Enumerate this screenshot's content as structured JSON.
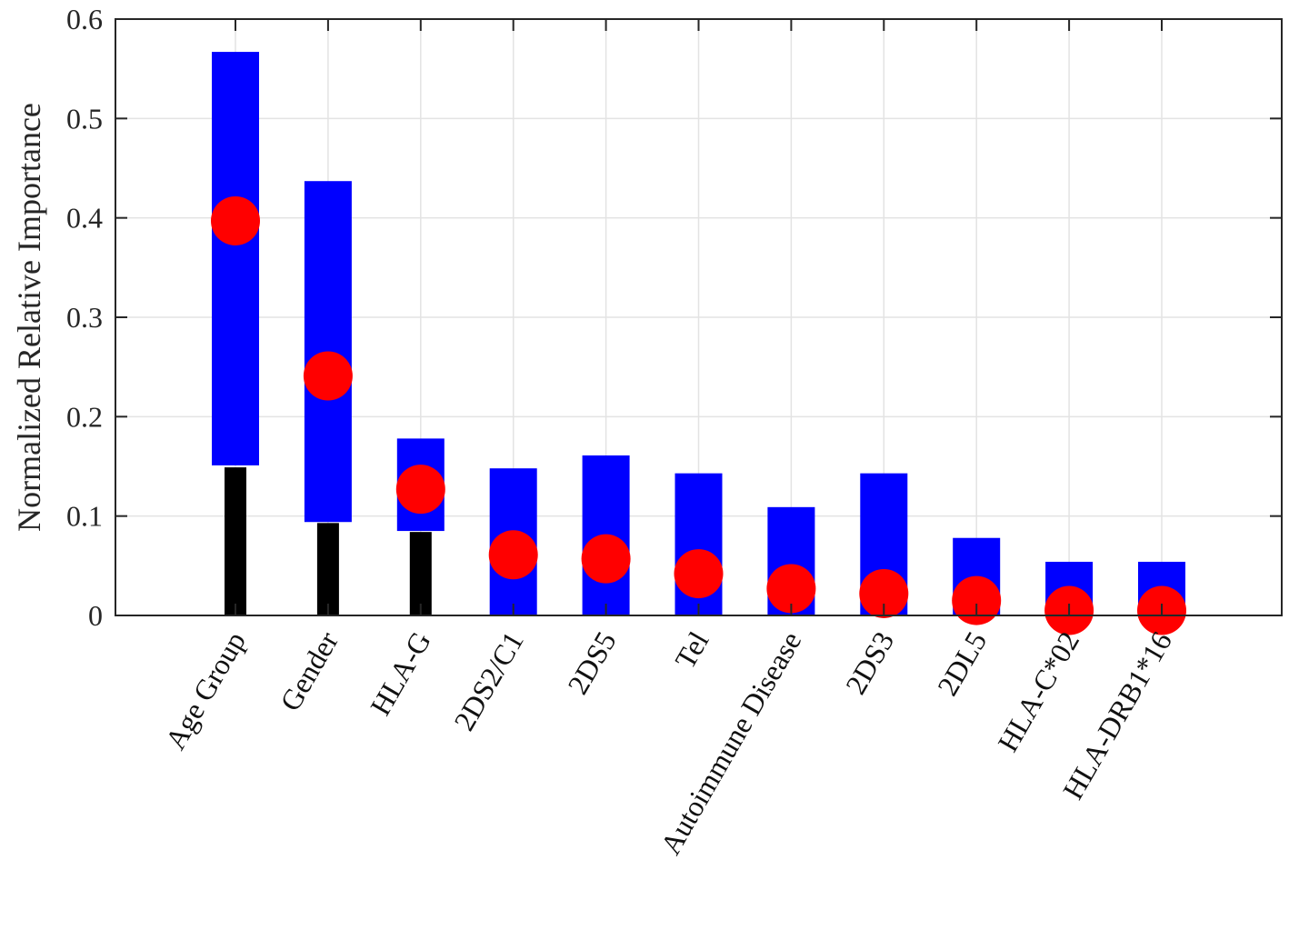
{
  "chart_data": {
    "type": "bar",
    "subtype": "floating-range-bar-with-median-marker",
    "title": "",
    "xlabel": "",
    "ylabel": "Normalized Relative Importance",
    "ylim": [
      0,
      0.6
    ],
    "yticks": [
      0,
      0.1,
      0.2,
      0.3,
      0.4,
      0.5,
      0.6
    ],
    "ytick_labels": [
      "0",
      "0.1",
      "0.2",
      "0.3",
      "0.4",
      "0.5",
      "0.6"
    ],
    "grid": true,
    "legend": null,
    "categories": [
      "Age Group",
      "Gender",
      "HLA-G",
      "2DS2/C1",
      "2DS5",
      "Tel",
      "Autoimmune Disease",
      "2DS3",
      "2DL5",
      "HLA-C*02",
      "HLA-DRB1*16"
    ],
    "series": [
      {
        "name": "range_low",
        "role": "blue bar bottom",
        "values": [
          0.151,
          0.094,
          0.085,
          0,
          0,
          0,
          0,
          0,
          0,
          0,
          0
        ]
      },
      {
        "name": "range_high",
        "role": "blue bar top",
        "values": [
          0.567,
          0.437,
          0.178,
          0.148,
          0.161,
          0.143,
          0.109,
          0.143,
          0.078,
          0.054,
          0.054
        ]
      },
      {
        "name": "lower_bar",
        "role": "black bar height",
        "values": [
          0.149,
          0.093,
          0.084,
          0,
          0,
          0,
          0,
          0,
          0,
          0,
          0
        ]
      },
      {
        "name": "marker",
        "role": "red dot value",
        "values": [
          0.397,
          0.241,
          0.127,
          0.061,
          0.057,
          0.042,
          0.027,
          0.022,
          0.015,
          0.005,
          0.005
        ]
      }
    ],
    "colors": {
      "range_bar": "#0000ff",
      "lower_bar": "#000000",
      "marker": "#ff0000",
      "grid": "#e3e3e3",
      "axis": "#262626"
    }
  }
}
